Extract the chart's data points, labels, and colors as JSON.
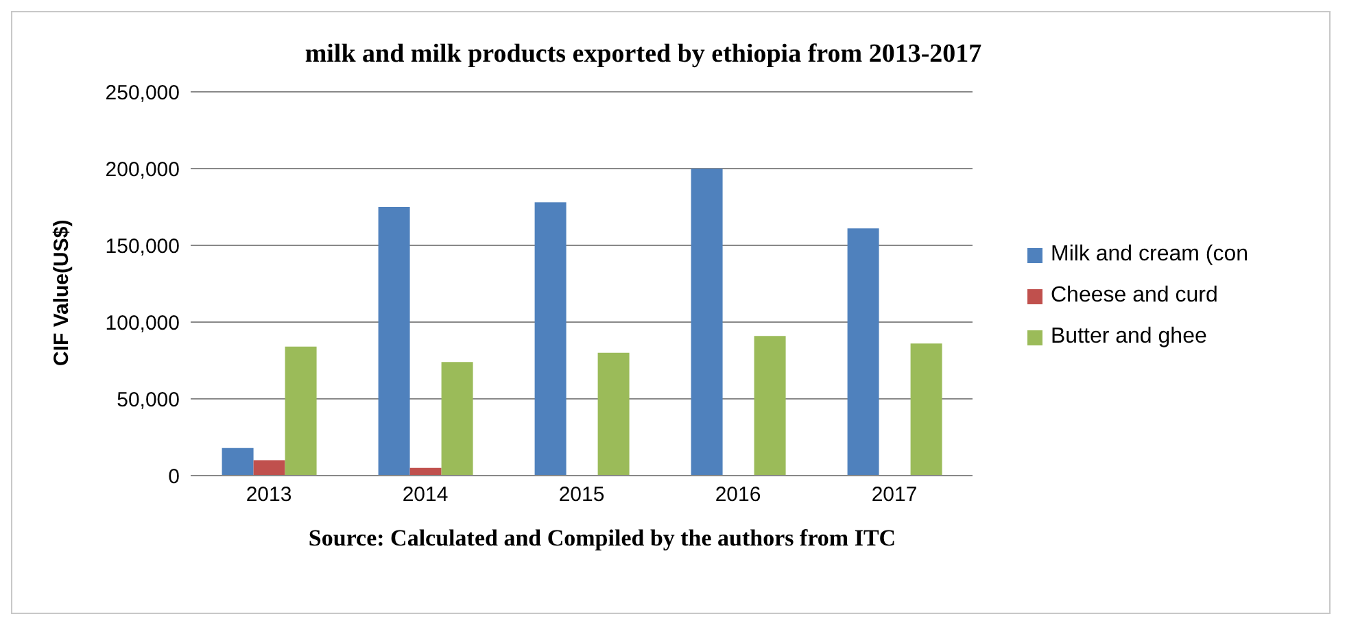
{
  "chart_data": {
    "type": "bar",
    "title": "milk and milk products exported by ethiopia from 2013-2017",
    "ylabel": "CIF Value(US$)",
    "annotations": [
      "Source: Calculated and Compiled by the authors from ITC"
    ],
    "categories": [
      "2013",
      "2014",
      "2015",
      "2016",
      "2017"
    ],
    "series": [
      {
        "name": "Milk and cream (con",
        "color": "#4f81bd",
        "values": [
          18000,
          175000,
          178000,
          200000,
          161000
        ]
      },
      {
        "name": "Cheese and curd",
        "color": "#c0504d",
        "values": [
          10000,
          5000,
          null,
          null,
          null
        ]
      },
      {
        "name": "Butter  and ghee",
        "color": "#9bbb59",
        "values": [
          84000,
          74000,
          80000,
          91000,
          86000
        ]
      }
    ],
    "ylim": [
      0,
      250000
    ],
    "yticks": [
      0,
      {
        "value": 50000,
        "label": "50,000"
      },
      {
        "value": 100000,
        "label": "100,000"
      },
      {
        "value": 150000,
        "label": "150,000"
      },
      {
        "value": 200000,
        "label": "200,000"
      },
      {
        "value": 250000,
        "label": "250,000"
      }
    ],
    "grid": "y",
    "legend": "right"
  }
}
